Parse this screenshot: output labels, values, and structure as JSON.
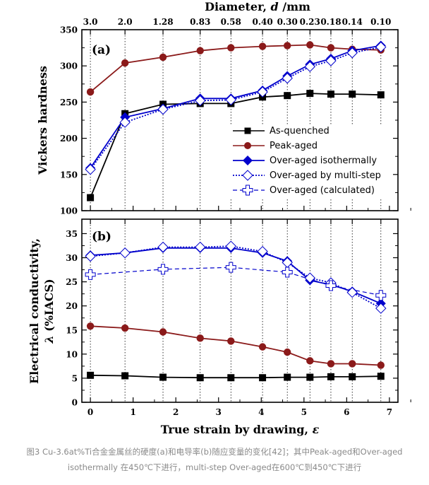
{
  "chart_data": {
    "type": "line",
    "x_label_prefix": "True strain by drawing, ",
    "x_label_var": "ε",
    "top_axis_label_prefix": "Diameter, ",
    "top_axis_label_var": "d",
    "top_axis_label_unit": " /mm",
    "xlim": [
      -0.2,
      7.2
    ],
    "x_ticks": [
      "0",
      "1",
      "2",
      "3",
      "4",
      "5",
      "6",
      "7"
    ],
    "x_tick_values": [
      0,
      1,
      2,
      3,
      4,
      5,
      6,
      7
    ],
    "diameter_ticks": {
      "labels": [
        "3.0",
        "2.0",
        "1.28",
        "0.83",
        "0.58",
        "0.40",
        "0.30",
        "0.23",
        "0.18",
        "0.14",
        "0.10"
      ],
      "strain": [
        0,
        0.81,
        1.7,
        2.57,
        3.29,
        4.03,
        4.61,
        5.14,
        5.63,
        6.13,
        6.8
      ]
    },
    "panels": [
      {
        "label": "(a)",
        "ylabel": "Vickers hardness",
        "ylim": [
          100,
          350
        ],
        "y_ticks": [
          "100",
          "150",
          "200",
          "250",
          "300",
          "350"
        ],
        "y_tick_values": [
          100,
          150,
          200,
          250,
          300,
          350
        ],
        "series": [
          {
            "name": "As-quenched",
            "color": "#000000",
            "marker": "square",
            "dash": "solid",
            "x": [
              0,
              0.81,
              1.7,
              2.57,
              3.29,
              4.03,
              4.61,
              5.14,
              5.63,
              6.13,
              6.8
            ],
            "y": [
              118,
              234,
              247,
              248,
              248,
              257,
              259,
              262,
              261,
              261,
              260
            ]
          },
          {
            "name": "Peak-aged",
            "color": "#8b1a1a",
            "marker": "circle",
            "dash": "solid",
            "x": [
              0,
              0.81,
              1.7,
              2.57,
              3.29,
              4.03,
              4.61,
              5.14,
              5.63,
              6.13,
              6.8
            ],
            "y": [
              264,
              304,
              312,
              321,
              325,
              327,
              328,
              329,
              325,
              323,
              322
            ]
          },
          {
            "name": "Over-aged isothermally",
            "color": "#0000cc",
            "marker": "diamond",
            "dash": "solid",
            "x": [
              0,
              0.81,
              1.7,
              2.57,
              3.29,
              4.03,
              4.61,
              5.14,
              5.63,
              6.13,
              6.8
            ],
            "y": [
              159,
              229,
              241,
              255,
              255,
              266,
              286,
              302,
              310,
              321,
              328
            ]
          },
          {
            "name": "Over-aged by multi-step",
            "color": "#0000cc",
            "marker": "diamond-open",
            "dash": "dot",
            "x": [
              0,
              0.81,
              1.7,
              2.57,
              3.29,
              4.03,
              4.61,
              5.14,
              5.63,
              6.13,
              6.8
            ],
            "y": [
              157,
              222,
              240,
              252,
              253,
              264,
              283,
              299,
              307,
              318,
              326
            ]
          },
          {
            "name": "Over-aged (calculated)",
            "color": "#0000cc",
            "marker": "plus-open",
            "dash": "dash",
            "x": [],
            "y": []
          }
        ]
      },
      {
        "label": "(b)",
        "ylabel_line1": "Electrical conductivity,",
        "ylabel_line2_var": "λ",
        "ylabel_line2_rest": " (%IACS)",
        "ylim": [
          0,
          38
        ],
        "y_ticks": [
          "0",
          "5",
          "10",
          "15",
          "20",
          "25",
          "30",
          "35"
        ],
        "y_tick_values": [
          0,
          5,
          10,
          15,
          20,
          25,
          30,
          35
        ],
        "series": [
          {
            "name": "As-quenched",
            "color": "#000000",
            "marker": "square",
            "dash": "solid",
            "x": [
              0,
              0.81,
              1.7,
              2.57,
              3.29,
              4.03,
              4.61,
              5.14,
              5.63,
              6.13,
              6.8
            ],
            "y": [
              5.6,
              5.5,
              5.2,
              5.1,
              5.1,
              5.1,
              5.2,
              5.2,
              5.3,
              5.3,
              5.4
            ]
          },
          {
            "name": "Peak-aged",
            "color": "#8b1a1a",
            "marker": "circle",
            "dash": "solid",
            "x": [
              0,
              0.81,
              1.7,
              2.57,
              3.29,
              4.03,
              4.61,
              5.14,
              5.63,
              6.13,
              6.8
            ],
            "y": [
              15.8,
              15.4,
              14.6,
              13.3,
              12.7,
              11.5,
              10.4,
              8.6,
              8.0,
              8.0,
              7.7
            ]
          },
          {
            "name": "Over-aged isothermally",
            "color": "#0000cc",
            "marker": "diamond",
            "dash": "solid",
            "x": [
              0,
              0.81,
              1.7,
              2.57,
              3.29,
              4.03,
              4.61,
              5.14,
              5.63,
              6.13,
              6.8
            ],
            "y": [
              30.5,
              31.0,
              32.0,
              32.0,
              32.0,
              31.0,
              29.3,
              25.3,
              24.4,
              23.0,
              20.5
            ]
          },
          {
            "name": "Over-aged by multi-step",
            "color": "#0000cc",
            "marker": "diamond-open",
            "dash": "dot",
            "x": [
              0,
              0.81,
              1.7,
              2.57,
              3.29,
              4.03,
              4.61,
              5.14,
              5.63,
              6.13,
              6.8
            ],
            "y": [
              30.3,
              31.0,
              32.2,
              32.2,
              32.4,
              31.3,
              29.0,
              25.8,
              24.8,
              22.8,
              19.5
            ]
          },
          {
            "name": "Over-aged (calculated)",
            "color": "#0000cc",
            "marker": "plus-open",
            "dash": "dash",
            "x": [
              0,
              1.7,
              3.29,
              4.61,
              5.63,
              6.8
            ],
            "y": [
              26.5,
              27.6,
              28.0,
              27.0,
              24.2,
              22.2
            ]
          }
        ]
      }
    ],
    "legend": {
      "placement": "lower-right of panel (a)",
      "entries": [
        "As-quenched",
        "Peak-aged",
        "Over-aged isothermally",
        "Over-aged by multi-step",
        "Over-aged (calculated)"
      ]
    }
  },
  "caption": {
    "line1": "图3 Cu-3.6at%Ti合金金属丝的硬度(a)和电导率(b)随应变量的变化[42]；其中Peak-aged和Over-aged",
    "line2": "isothermally 在450℃下进行，multi-step Over-aged在600℃到450℃下进行"
  }
}
